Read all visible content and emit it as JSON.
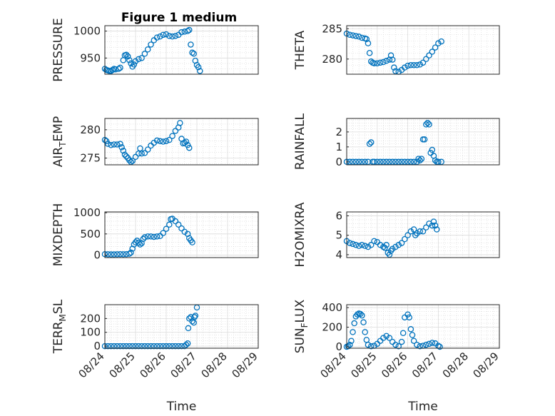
{
  "figure": {
    "title": "Figure 1 medium",
    "marker_color": "#0072BD"
  },
  "chart_data": [
    {
      "type": "scatter",
      "ylabel": "PRESSURE",
      "ylabel_sub": "",
      "ylabel_tail": "",
      "xticks": [],
      "yticks": [
        950,
        1000
      ],
      "ylim": [
        920,
        1010
      ],
      "xlim": [
        0,
        5
      ],
      "grid": true,
      "minor_grid": true,
      "points": [
        [
          0.0,
          930
        ],
        [
          0.05,
          928
        ],
        [
          0.1,
          927
        ],
        [
          0.15,
          926
        ],
        [
          0.2,
          926
        ],
        [
          0.25,
          928
        ],
        [
          0.3,
          930
        ],
        [
          0.35,
          929
        ],
        [
          0.45,
          930
        ],
        [
          0.5,
          932
        ],
        [
          0.6,
          946
        ],
        [
          0.65,
          955
        ],
        [
          0.7,
          956
        ],
        [
          0.75,
          953
        ],
        [
          0.8,
          946
        ],
        [
          0.85,
          940
        ],
        [
          0.9,
          934
        ],
        [
          0.95,
          938
        ],
        [
          1.0,
          944
        ],
        [
          1.1,
          948
        ],
        [
          1.2,
          950
        ],
        [
          1.3,
          958
        ],
        [
          1.4,
          966
        ],
        [
          1.5,
          975
        ],
        [
          1.6,
          983
        ],
        [
          1.7,
          988
        ],
        [
          1.8,
          990
        ],
        [
          1.9,
          993
        ],
        [
          2.0,
          994
        ],
        [
          2.1,
          991
        ],
        [
          2.2,
          990
        ],
        [
          2.3,
          991
        ],
        [
          2.4,
          993
        ],
        [
          2.5,
          998
        ],
        [
          2.6,
          999
        ],
        [
          2.7,
          1000
        ],
        [
          2.75,
          1002
        ],
        [
          2.8,
          975
        ],
        [
          2.85,
          960
        ],
        [
          2.9,
          958
        ],
        [
          2.95,
          945
        ],
        [
          3.0,
          937
        ],
        [
          3.05,
          933
        ],
        [
          3.1,
          926
        ]
      ]
    },
    {
      "type": "scatter",
      "ylabel": "THETA",
      "ylabel_sub": "",
      "ylabel_tail": "",
      "xticks": [],
      "yticks": [
        280,
        285
      ],
      "ylim": [
        277.5,
        285.5
      ],
      "xlim": [
        0,
        5
      ],
      "grid": true,
      "minor_grid": true,
      "points": [
        [
          0.0,
          284.2
        ],
        [
          0.1,
          284.0
        ],
        [
          0.2,
          283.9
        ],
        [
          0.3,
          283.8
        ],
        [
          0.4,
          283.7
        ],
        [
          0.5,
          283.5
        ],
        [
          0.6,
          283.4
        ],
        [
          0.65,
          283.3
        ],
        [
          0.7,
          282.6
        ],
        [
          0.75,
          281.0
        ],
        [
          0.8,
          279.6
        ],
        [
          0.85,
          279.4
        ],
        [
          0.9,
          279.3
        ],
        [
          1.0,
          279.3
        ],
        [
          1.1,
          279.4
        ],
        [
          1.2,
          279.5
        ],
        [
          1.3,
          279.7
        ],
        [
          1.4,
          279.9
        ],
        [
          1.45,
          280.6
        ],
        [
          1.5,
          279.9
        ],
        [
          1.55,
          278.6
        ],
        [
          1.6,
          278.0
        ],
        [
          1.7,
          277.9
        ],
        [
          1.8,
          278.2
        ],
        [
          1.9,
          278.6
        ],
        [
          2.0,
          278.9
        ],
        [
          2.1,
          279.0
        ],
        [
          2.2,
          279.0
        ],
        [
          2.3,
          279.0
        ],
        [
          2.4,
          279.1
        ],
        [
          2.5,
          279.4
        ],
        [
          2.6,
          280.0
        ],
        [
          2.7,
          280.6
        ],
        [
          2.8,
          281.2
        ],
        [
          2.9,
          281.9
        ],
        [
          3.0,
          282.6
        ],
        [
          3.1,
          282.9
        ]
      ]
    },
    {
      "type": "scatter",
      "ylabel": "AIR",
      "ylabel_sub": "T",
      "ylabel_tail": "EMP",
      "xticks": [],
      "yticks": [
        275,
        280
      ],
      "ylim": [
        273.8,
        282
      ],
      "xlim": [
        0,
        5
      ],
      "grid": true,
      "minor_grid": true,
      "points": [
        [
          0.0,
          278.2
        ],
        [
          0.05,
          278.0
        ],
        [
          0.1,
          277.5
        ],
        [
          0.2,
          277.3
        ],
        [
          0.3,
          277.4
        ],
        [
          0.4,
          277.4
        ],
        [
          0.5,
          277.5
        ],
        [
          0.55,
          276.9
        ],
        [
          0.6,
          276.3
        ],
        [
          0.65,
          275.6
        ],
        [
          0.7,
          275.3
        ],
        [
          0.75,
          275.0
        ],
        [
          0.8,
          274.6
        ],
        [
          0.85,
          274.3
        ],
        [
          0.9,
          274.5
        ],
        [
          1.0,
          275.2
        ],
        [
          1.1,
          275.8
        ],
        [
          1.15,
          276.7
        ],
        [
          1.2,
          275.8
        ],
        [
          1.3,
          275.9
        ],
        [
          1.4,
          276.5
        ],
        [
          1.5,
          277.2
        ],
        [
          1.6,
          277.7
        ],
        [
          1.7,
          278.1
        ],
        [
          1.8,
          278.0
        ],
        [
          1.9,
          277.9
        ],
        [
          2.0,
          278.0
        ],
        [
          2.1,
          278.2
        ],
        [
          2.2,
          278.9
        ],
        [
          2.3,
          279.8
        ],
        [
          2.4,
          280.4
        ],
        [
          2.45,
          281.2
        ],
        [
          2.5,
          278.4
        ],
        [
          2.55,
          277.6
        ],
        [
          2.6,
          277.7
        ],
        [
          2.65,
          277.9
        ],
        [
          2.7,
          277.3
        ],
        [
          2.75,
          276.8
        ]
      ]
    },
    {
      "type": "scatter",
      "ylabel": "RAINFALL",
      "ylabel_sub": "",
      "ylabel_tail": "",
      "xticks": [],
      "yticks": [
        0,
        1,
        2
      ],
      "ylim": [
        -0.2,
        2.9
      ],
      "xlim": [
        0,
        5
      ],
      "grid": true,
      "minor_grid": true,
      "points": [
        [
          0.0,
          0
        ],
        [
          0.1,
          0
        ],
        [
          0.2,
          0
        ],
        [
          0.3,
          0
        ],
        [
          0.4,
          0
        ],
        [
          0.5,
          0
        ],
        [
          0.6,
          0
        ],
        [
          0.7,
          0
        ],
        [
          0.75,
          1.2
        ],
        [
          0.8,
          1.3
        ],
        [
          0.85,
          0
        ],
        [
          0.9,
          0
        ],
        [
          1.0,
          0
        ],
        [
          1.1,
          0
        ],
        [
          1.2,
          0
        ],
        [
          1.3,
          0
        ],
        [
          1.4,
          0
        ],
        [
          1.5,
          0
        ],
        [
          1.6,
          0
        ],
        [
          1.7,
          0
        ],
        [
          1.8,
          0
        ],
        [
          1.9,
          0
        ],
        [
          2.0,
          0
        ],
        [
          2.1,
          0
        ],
        [
          2.2,
          0
        ],
        [
          2.3,
          0
        ],
        [
          2.35,
          0.2
        ],
        [
          2.4,
          0.1
        ],
        [
          2.45,
          0.2
        ],
        [
          2.5,
          1.5
        ],
        [
          2.55,
          1.5
        ],
        [
          2.6,
          2.5
        ],
        [
          2.65,
          2.6
        ],
        [
          2.7,
          2.5
        ],
        [
          2.75,
          0.6
        ],
        [
          2.8,
          0.8
        ],
        [
          2.85,
          0.4
        ],
        [
          2.9,
          0.1
        ],
        [
          2.95,
          0
        ],
        [
          3.0,
          0
        ],
        [
          3.1,
          0
        ]
      ]
    },
    {
      "type": "scatter",
      "ylabel": "MIXDEPTH",
      "ylabel_sub": "",
      "ylabel_tail": "",
      "xticks": [],
      "yticks": [
        0,
        500,
        1000
      ],
      "ylim": [
        -60,
        1020
      ],
      "xlim": [
        0,
        5
      ],
      "grid": true,
      "minor_grid": true,
      "points": [
        [
          0.0,
          20
        ],
        [
          0.1,
          18
        ],
        [
          0.2,
          15
        ],
        [
          0.3,
          15
        ],
        [
          0.4,
          18
        ],
        [
          0.5,
          20
        ],
        [
          0.6,
          18
        ],
        [
          0.7,
          20
        ],
        [
          0.8,
          30
        ],
        [
          0.85,
          60
        ],
        [
          0.9,
          150
        ],
        [
          0.95,
          250
        ],
        [
          1.0,
          300
        ],
        [
          1.05,
          340
        ],
        [
          1.1,
          290
        ],
        [
          1.15,
          250
        ],
        [
          1.2,
          280
        ],
        [
          1.25,
          380
        ],
        [
          1.3,
          420
        ],
        [
          1.4,
          440
        ],
        [
          1.5,
          440
        ],
        [
          1.6,
          430
        ],
        [
          1.7,
          440
        ],
        [
          1.8,
          450
        ],
        [
          1.9,
          520
        ],
        [
          2.0,
          620
        ],
        [
          2.1,
          720
        ],
        [
          2.15,
          850
        ],
        [
          2.2,
          860
        ],
        [
          2.3,
          800
        ],
        [
          2.4,
          720
        ],
        [
          2.5,
          630
        ],
        [
          2.6,
          550
        ],
        [
          2.7,
          500
        ],
        [
          2.75,
          400
        ],
        [
          2.8,
          350
        ],
        [
          2.85,
          300
        ]
      ]
    },
    {
      "type": "scatter",
      "ylabel": "H2OMIXRA",
      "ylabel_sub": "",
      "ylabel_tail": "",
      "xticks": [],
      "yticks": [
        4,
        5,
        6
      ],
      "ylim": [
        3.85,
        6.2
      ],
      "xlim": [
        0,
        5
      ],
      "grid": true,
      "minor_grid": true,
      "points": [
        [
          0.0,
          4.7
        ],
        [
          0.1,
          4.6
        ],
        [
          0.2,
          4.55
        ],
        [
          0.3,
          4.5
        ],
        [
          0.4,
          4.45
        ],
        [
          0.5,
          4.5
        ],
        [
          0.6,
          4.45
        ],
        [
          0.7,
          4.4
        ],
        [
          0.8,
          4.5
        ],
        [
          0.9,
          4.7
        ],
        [
          1.0,
          4.65
        ],
        [
          1.1,
          4.5
        ],
        [
          1.2,
          4.4
        ],
        [
          1.25,
          4.35
        ],
        [
          1.3,
          4.5
        ],
        [
          1.35,
          4.1
        ],
        [
          1.4,
          4.0
        ],
        [
          1.45,
          4.2
        ],
        [
          1.5,
          4.3
        ],
        [
          1.6,
          4.4
        ],
        [
          1.7,
          4.5
        ],
        [
          1.8,
          4.6
        ],
        [
          1.9,
          4.8
        ],
        [
          2.0,
          5.0
        ],
        [
          2.1,
          5.2
        ],
        [
          2.2,
          5.3
        ],
        [
          2.25,
          5.0
        ],
        [
          2.3,
          5.1
        ],
        [
          2.4,
          5.2
        ],
        [
          2.5,
          5.2
        ],
        [
          2.6,
          5.4
        ],
        [
          2.7,
          5.6
        ],
        [
          2.8,
          5.5
        ],
        [
          2.85,
          5.7
        ],
        [
          2.9,
          5.5
        ],
        [
          2.95,
          5.3
        ]
      ]
    },
    {
      "type": "scatter",
      "ylabel": "TERR",
      "ylabel_sub": "M",
      "ylabel_tail": "SL",
      "xticks": [
        "08/24",
        "08/25",
        "08/26",
        "08/27",
        "08/28",
        "08/29"
      ],
      "yticks": [
        0,
        100,
        200
      ],
      "ylim": [
        -15,
        300
      ],
      "xlim": [
        0,
        5
      ],
      "grid": true,
      "minor_grid": true,
      "xlabel": "Time",
      "points": [
        [
          0.0,
          0
        ],
        [
          0.1,
          0
        ],
        [
          0.2,
          0
        ],
        [
          0.3,
          0
        ],
        [
          0.4,
          0
        ],
        [
          0.5,
          0
        ],
        [
          0.6,
          0
        ],
        [
          0.7,
          0
        ],
        [
          0.8,
          0
        ],
        [
          0.9,
          0
        ],
        [
          1.0,
          0
        ],
        [
          1.1,
          0
        ],
        [
          1.2,
          0
        ],
        [
          1.3,
          0
        ],
        [
          1.4,
          0
        ],
        [
          1.5,
          0
        ],
        [
          1.6,
          0
        ],
        [
          1.7,
          0
        ],
        [
          1.8,
          0
        ],
        [
          1.9,
          0
        ],
        [
          2.0,
          0
        ],
        [
          2.1,
          0
        ],
        [
          2.2,
          0
        ],
        [
          2.3,
          0
        ],
        [
          2.4,
          0
        ],
        [
          2.5,
          0
        ],
        [
          2.6,
          0
        ],
        [
          2.65,
          10
        ],
        [
          2.7,
          20
        ],
        [
          2.72,
          130
        ],
        [
          2.75,
          200
        ],
        [
          2.8,
          210
        ],
        [
          2.85,
          180
        ],
        [
          2.9,
          170
        ],
        [
          2.92,
          210
        ],
        [
          2.95,
          220
        ],
        [
          3.0,
          280
        ]
      ]
    },
    {
      "type": "scatter",
      "ylabel": "SUN",
      "ylabel_sub": "F",
      "ylabel_tail": "LUX",
      "xticks": [
        "08/24",
        "08/25",
        "08/26",
        "08/27",
        "08/28",
        "08/29"
      ],
      "yticks": [
        0,
        200,
        400
      ],
      "ylim": [
        -15,
        430
      ],
      "xlim": [
        0,
        5
      ],
      "grid": true,
      "minor_grid": true,
      "xlabel": "Time",
      "points": [
        [
          0.0,
          0
        ],
        [
          0.05,
          5
        ],
        [
          0.1,
          20
        ],
        [
          0.15,
          60
        ],
        [
          0.2,
          150
        ],
        [
          0.25,
          240
        ],
        [
          0.3,
          310
        ],
        [
          0.35,
          330
        ],
        [
          0.4,
          340
        ],
        [
          0.45,
          335
        ],
        [
          0.5,
          320
        ],
        [
          0.55,
          250
        ],
        [
          0.6,
          150
        ],
        [
          0.65,
          70
        ],
        [
          0.7,
          20
        ],
        [
          0.8,
          5
        ],
        [
          0.9,
          10
        ],
        [
          1.0,
          30
        ],
        [
          1.1,
          60
        ],
        [
          1.2,
          90
        ],
        [
          1.3,
          110
        ],
        [
          1.4,
          90
        ],
        [
          1.5,
          50
        ],
        [
          1.6,
          20
        ],
        [
          1.7,
          5
        ],
        [
          1.8,
          50
        ],
        [
          1.85,
          140
        ],
        [
          1.9,
          300
        ],
        [
          2.0,
          330
        ],
        [
          2.05,
          300
        ],
        [
          2.1,
          180
        ],
        [
          2.15,
          120
        ],
        [
          2.2,
          60
        ],
        [
          2.3,
          20
        ],
        [
          2.4,
          5
        ],
        [
          2.5,
          10
        ],
        [
          2.6,
          20
        ],
        [
          2.7,
          30
        ],
        [
          2.8,
          40
        ],
        [
          2.9,
          35
        ],
        [
          3.0,
          10
        ],
        [
          3.05,
          0
        ]
      ]
    }
  ]
}
